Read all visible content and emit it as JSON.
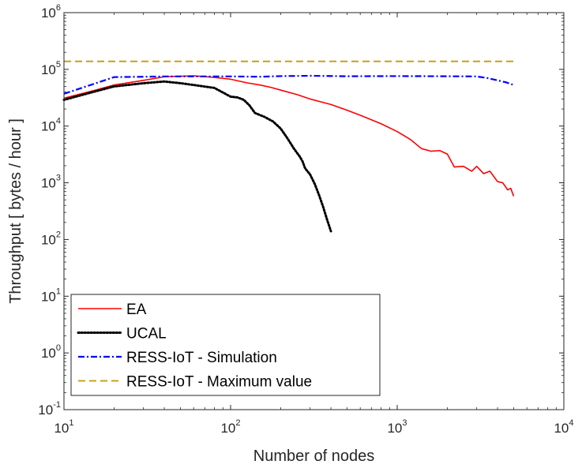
{
  "chart_data": {
    "type": "line",
    "xlabel": "Number of nodes",
    "ylabel": "Throughput [ bytes / hour ]",
    "xscale": "log",
    "yscale": "log",
    "xlim": [
      10,
      10000
    ],
    "ylim": [
      0.1,
      1000000
    ],
    "x_ticks": [
      {
        "base": "10",
        "exp": "1"
      },
      {
        "base": "10",
        "exp": "2"
      },
      {
        "base": "10",
        "exp": "3"
      },
      {
        "base": "10",
        "exp": "4"
      }
    ],
    "y_ticks": [
      {
        "base": "10",
        "exp": "-1"
      },
      {
        "base": "10",
        "exp": "0"
      },
      {
        "base": "10",
        "exp": "1"
      },
      {
        "base": "10",
        "exp": "2"
      },
      {
        "base": "10",
        "exp": "3"
      },
      {
        "base": "10",
        "exp": "4"
      },
      {
        "base": "10",
        "exp": "5"
      },
      {
        "base": "10",
        "exp": "6"
      }
    ],
    "grid": false,
    "legend_position": "bottom-left",
    "series": [
      {
        "name": "EA",
        "color": "#ff0000",
        "style": "solid",
        "points": [
          [
            10,
            31000
          ],
          [
            15,
            42000
          ],
          [
            20,
            53000
          ],
          [
            30,
            64000
          ],
          [
            40,
            74000
          ],
          [
            60,
            77000
          ],
          [
            80,
            72000
          ],
          [
            100,
            67000
          ],
          [
            125,
            58000
          ],
          [
            150,
            53000
          ],
          [
            175,
            48000
          ],
          [
            200,
            43000
          ],
          [
            250,
            36000
          ],
          [
            300,
            30000
          ],
          [
            400,
            24000
          ],
          [
            500,
            19000
          ],
          [
            600,
            15500
          ],
          [
            800,
            11000
          ],
          [
            1000,
            8000
          ],
          [
            1200,
            5800
          ],
          [
            1400,
            4000
          ],
          [
            1600,
            3600
          ],
          [
            1800,
            3700
          ],
          [
            2000,
            3200
          ],
          [
            2200,
            1900
          ],
          [
            2500,
            1950
          ],
          [
            2800,
            1600
          ],
          [
            3000,
            1950
          ],
          [
            3300,
            1450
          ],
          [
            3600,
            1600
          ],
          [
            4000,
            1050
          ],
          [
            4300,
            1000
          ],
          [
            4600,
            750
          ],
          [
            4800,
            800
          ],
          [
            5000,
            580
          ]
        ]
      },
      {
        "name": "UCAL",
        "color": "#000000",
        "style": "dotted",
        "points": [
          [
            10,
            29000
          ],
          [
            15,
            40000
          ],
          [
            20,
            50000
          ],
          [
            30,
            57000
          ],
          [
            40,
            61000
          ],
          [
            50,
            57000
          ],
          [
            60,
            53000
          ],
          [
            80,
            47000
          ],
          [
            90,
            39000
          ],
          [
            100,
            33000
          ],
          [
            110,
            32000
          ],
          [
            120,
            29000
          ],
          [
            130,
            23000
          ],
          [
            140,
            17000
          ],
          [
            160,
            14500
          ],
          [
            180,
            12000
          ],
          [
            200,
            9000
          ],
          [
            220,
            6000
          ],
          [
            240,
            4000
          ],
          [
            260,
            2900
          ],
          [
            270,
            2400
          ],
          [
            280,
            1800
          ],
          [
            300,
            1400
          ],
          [
            320,
            950
          ],
          [
            340,
            600
          ],
          [
            360,
            370
          ],
          [
            380,
            220
          ],
          [
            400,
            140
          ]
        ]
      },
      {
        "name": "RESS-IoT - Simulation",
        "color": "#0000ff",
        "style": "dashdot",
        "points": [
          [
            10,
            37000
          ],
          [
            15,
            55000
          ],
          [
            20,
            73000
          ],
          [
            30,
            74000
          ],
          [
            40,
            75000
          ],
          [
            60,
            75000
          ],
          [
            100,
            75000
          ],
          [
            150,
            74000
          ],
          [
            200,
            76000
          ],
          [
            300,
            77000
          ],
          [
            500,
            75500
          ],
          [
            1000,
            76000
          ],
          [
            2000,
            75500
          ],
          [
            3000,
            75000
          ],
          [
            3500,
            70000
          ],
          [
            4000,
            64000
          ],
          [
            4500,
            59000
          ],
          [
            5000,
            53000
          ]
        ]
      },
      {
        "name": "RESS-IoT - Maximum value",
        "color": "#c8a016",
        "style": "dashed",
        "points": [
          [
            10,
            138000
          ],
          [
            5000,
            138000
          ]
        ]
      }
    ]
  }
}
